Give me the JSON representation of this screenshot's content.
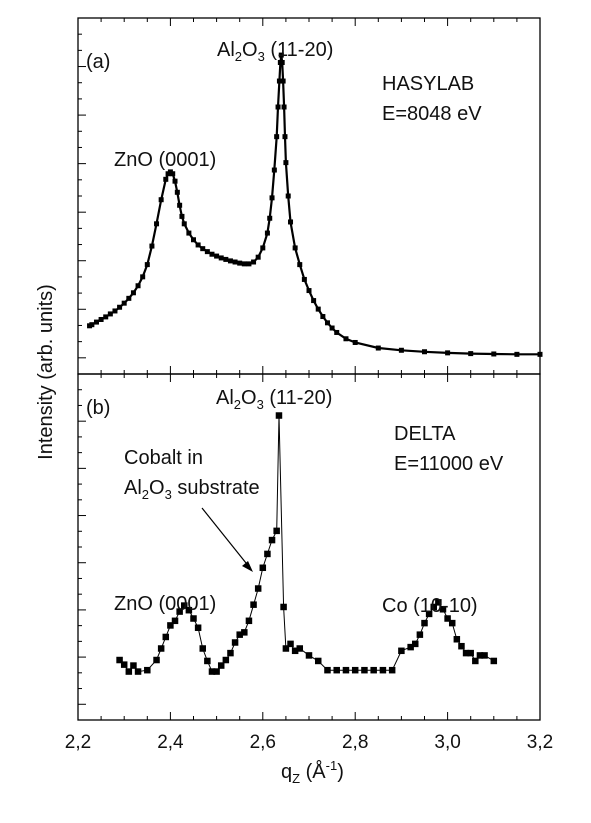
{
  "chart_data": [
    {
      "type": "scatter",
      "panel_label": "(a)",
      "source": "HASYLAB",
      "energy": "E=8048 eV",
      "x_min": 2.2,
      "x_max": 3.2,
      "y_log": true,
      "annotations": {
        "zno_pre": "ZnO (0001)",
        "al_pre": "Al",
        "al_sub2": "2",
        "al_mid": "O",
        "al_sub3": "3",
        "al_post": " (11-20)"
      },
      "series": [
        {
          "style": "dense-line-markers",
          "x": [
            2.225,
            2.23,
            2.24,
            2.25,
            2.26,
            2.27,
            2.28,
            2.29,
            2.3,
            2.31,
            2.32,
            2.33,
            2.34,
            2.35,
            2.36,
            2.37,
            2.38,
            2.39,
            2.395,
            2.4,
            2.405,
            2.41,
            2.415,
            2.42,
            2.425,
            2.43,
            2.44,
            2.45,
            2.46,
            2.47,
            2.48,
            2.49,
            2.5,
            2.51,
            2.52,
            2.53,
            2.54,
            2.55,
            2.56,
            2.57,
            2.58,
            2.59,
            2.6,
            2.61,
            2.615,
            2.62,
            2.625,
            2.63,
            2.633,
            2.636,
            2.638,
            2.64,
            2.642,
            2.644,
            2.646,
            2.648,
            2.65,
            2.655,
            2.66,
            2.67,
            2.68,
            2.69,
            2.7,
            2.71,
            2.72,
            2.73,
            2.74,
            2.75,
            2.76,
            2.78,
            2.8,
            2.85,
            2.9,
            2.95,
            3.0,
            3.05,
            3.1,
            3.15,
            3.2
          ],
          "y": [
            -2.7,
            -2.67,
            -2.6,
            -2.53,
            -2.46,
            -2.38,
            -2.3,
            -2.2,
            -2.09,
            -1.96,
            -1.81,
            -1.62,
            -1.38,
            -1.05,
            -0.55,
            0.05,
            0.7,
            1.25,
            1.4,
            1.45,
            1.4,
            1.2,
            0.9,
            0.55,
            0.25,
            0.05,
            -0.2,
            -0.38,
            -0.52,
            -0.62,
            -0.7,
            -0.77,
            -0.82,
            -0.87,
            -0.91,
            -0.95,
            -0.98,
            -1.01,
            -1.03,
            -1.03,
            -0.98,
            -0.85,
            -0.6,
            -0.2,
            0.2,
            0.75,
            1.5,
            2.4,
            3.2,
            3.9,
            4.4,
            4.6,
            4.4,
            3.9,
            3.2,
            2.4,
            1.7,
            0.8,
            0.1,
            -0.6,
            -1.05,
            -1.45,
            -1.75,
            -2.02,
            -2.25,
            -2.45,
            -2.62,
            -2.76,
            -2.88,
            -3.05,
            -3.15,
            -3.3,
            -3.36,
            -3.4,
            -3.43,
            -3.45,
            -3.46,
            -3.47,
            -3.47
          ]
        }
      ]
    },
    {
      "type": "scatter",
      "panel_label": "(b)",
      "source": "DELTA",
      "energy": "E=11000 eV",
      "x_min": 2.2,
      "x_max": 3.2,
      "xlabel": "q",
      "xlabel_sub": "Z",
      "xlabel_unit": " (Å",
      "xlabel_sup": "-1",
      "xlabel_close": ")",
      "ticks": [
        "2,2",
        "2,4",
        "2,6",
        "2,8",
        "3,0",
        "3,2"
      ],
      "tick_values": [
        2.2,
        2.4,
        2.6,
        2.8,
        3.0,
        3.2
      ],
      "y_log": true,
      "annotations": {
        "zno": "ZnO (0001)",
        "co": "Co (10-10)",
        "cobalt_line1": "Cobalt in",
        "cobalt_al": "Al",
        "cobalt_sub2": "2",
        "cobalt_o": "O",
        "cobalt_sub3": "3",
        "cobalt_post": " substrate",
        "al_pre": "Al",
        "al_sub2": "2",
        "al_mid": "O",
        "al_sub3": "3",
        "al_post": " (11-20)"
      },
      "series": [
        {
          "style": "line-markers",
          "x": [
            2.29,
            2.3,
            2.31,
            2.32,
            2.33,
            2.35,
            2.37,
            2.38,
            2.39,
            2.4,
            2.41,
            2.42,
            2.43,
            2.44,
            2.45,
            2.46,
            2.47,
            2.48,
            2.49,
            2.5,
            2.51,
            2.52,
            2.53,
            2.54,
            2.55,
            2.56,
            2.57,
            2.58,
            2.59,
            2.6,
            2.61,
            2.62,
            2.63,
            2.635,
            2.645,
            2.65,
            2.66,
            2.67,
            2.68,
            2.7,
            2.72,
            2.74,
            2.76,
            2.78,
            2.8,
            2.82,
            2.84,
            2.86,
            2.88,
            2.9,
            2.92,
            2.93,
            2.94,
            2.95,
            2.96,
            2.97,
            2.98,
            2.99,
            3.0,
            3.01,
            3.02,
            3.03,
            3.04,
            3.05,
            3.06,
            3.07,
            3.08,
            3.1
          ],
          "y": [
            -0.7,
            -0.8,
            -0.95,
            -0.82,
            -0.95,
            -0.92,
            -0.7,
            -0.45,
            -0.2,
            0.05,
            0.15,
            0.35,
            0.48,
            0.38,
            0.2,
            0.0,
            -0.45,
            -0.72,
            -0.95,
            -0.95,
            -0.82,
            -0.7,
            -0.55,
            -0.32,
            -0.15,
            -0.1,
            0.15,
            0.5,
            0.85,
            1.3,
            1.6,
            1.9,
            2.1,
            4.6,
            0.45,
            -0.45,
            -0.35,
            -0.5,
            -0.45,
            -0.6,
            -0.72,
            -0.92,
            -0.92,
            -0.92,
            -0.92,
            -0.92,
            -0.92,
            -0.92,
            -0.92,
            -0.5,
            -0.42,
            -0.35,
            -0.15,
            0.1,
            0.3,
            0.45,
            0.55,
            0.4,
            0.2,
            0.1,
            -0.25,
            -0.4,
            -0.55,
            -0.55,
            -0.72,
            -0.6,
            -0.6,
            -0.72
          ]
        }
      ]
    }
  ],
  "shared_ylabel": "Intensity (arb. units)"
}
